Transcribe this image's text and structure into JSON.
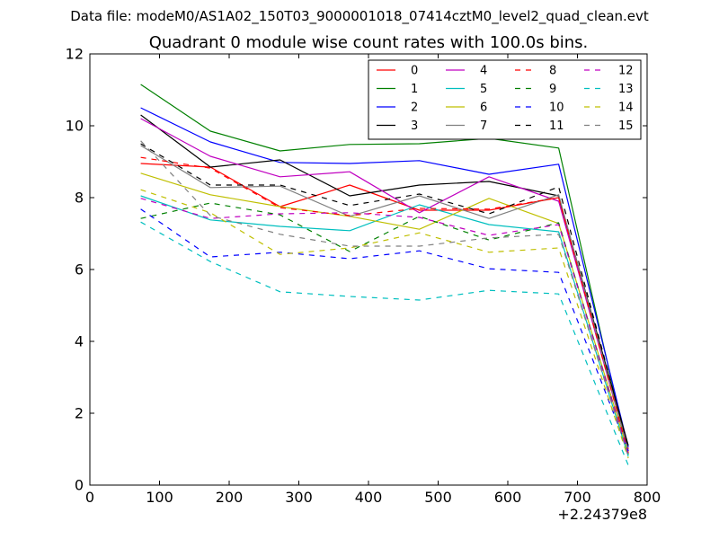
{
  "chart_data": {
    "type": "line",
    "suptitle": "Data file: modeM0/AS1A02_150T03_9000001018_07414cztM0_level2_quad_clean.evt",
    "title": "Quadrant 0 module wise count rates with 100.0s bins.",
    "xlabel": "",
    "ylabel": "",
    "x_offset_label": "+2.24379e8",
    "xlim": [
      0,
      800
    ],
    "ylim": [
      0,
      12
    ],
    "x_ticks": [
      0,
      100,
      200,
      300,
      400,
      500,
      600,
      700,
      800
    ],
    "y_ticks": [
      0,
      2,
      4,
      6,
      8,
      10,
      12
    ],
    "x": [
      73,
      173,
      273,
      373,
      473,
      573,
      673,
      773
    ],
    "legend_position": "upper-right",
    "legend_columns": 4,
    "series": [
      {
        "name": "0",
        "color": "#ff0000",
        "style": "solid",
        "values": [
          8.95,
          8.85,
          7.75,
          8.35,
          7.65,
          7.65,
          8.0,
          1.0
        ]
      },
      {
        "name": "1",
        "color": "#008000",
        "style": "solid",
        "values": [
          11.15,
          9.85,
          9.3,
          9.48,
          9.5,
          9.65,
          9.38,
          0.85
        ]
      },
      {
        "name": "2",
        "color": "#0000ff",
        "style": "solid",
        "values": [
          10.5,
          9.55,
          8.98,
          8.95,
          9.03,
          8.65,
          8.93,
          1.05
        ]
      },
      {
        "name": "3",
        "color": "#000000",
        "style": "solid",
        "values": [
          10.3,
          8.85,
          9.05,
          8.05,
          8.35,
          8.45,
          8.05,
          1.1
        ]
      },
      {
        "name": "4",
        "color": "#c000c0",
        "style": "solid",
        "values": [
          10.2,
          9.15,
          8.58,
          8.72,
          7.58,
          8.58,
          7.9,
          0.95
        ]
      },
      {
        "name": "5",
        "color": "#00bfbf",
        "style": "solid",
        "values": [
          8.05,
          7.38,
          7.2,
          7.08,
          7.8,
          7.25,
          7.05,
          0.8
        ]
      },
      {
        "name": "6",
        "color": "#bfbf00",
        "style": "solid",
        "values": [
          8.68,
          8.08,
          7.75,
          7.48,
          7.12,
          7.98,
          7.28,
          0.9
        ]
      },
      {
        "name": "7",
        "color": "#808080",
        "style": "solid",
        "values": [
          9.45,
          8.28,
          8.32,
          7.48,
          8.05,
          7.42,
          8.08,
          0.95
        ]
      },
      {
        "name": "8",
        "color": "#ff0000",
        "style": "dashed",
        "values": [
          9.12,
          8.82,
          7.72,
          7.5,
          7.7,
          7.68,
          8.0,
          0.9
        ]
      },
      {
        "name": "9",
        "color": "#008000",
        "style": "dashed",
        "values": [
          7.42,
          7.85,
          7.52,
          6.5,
          7.48,
          6.82,
          7.3,
          0.85
        ]
      },
      {
        "name": "10",
        "color": "#0000ff",
        "style": "dashed",
        "values": [
          7.68,
          6.35,
          6.48,
          6.3,
          6.52,
          6.02,
          5.92,
          0.95
        ]
      },
      {
        "name": "11",
        "color": "#000000",
        "style": "dashed",
        "values": [
          9.5,
          8.35,
          8.35,
          7.78,
          8.1,
          7.55,
          8.3,
          1.05
        ]
      },
      {
        "name": "12",
        "color": "#c000c0",
        "style": "dashed",
        "values": [
          7.98,
          7.42,
          7.55,
          7.58,
          7.45,
          6.95,
          7.25,
          0.85
        ]
      },
      {
        "name": "13",
        "color": "#00bfbf",
        "style": "dashed",
        "values": [
          7.32,
          6.22,
          5.38,
          5.25,
          5.15,
          5.42,
          5.32,
          0.55
        ]
      },
      {
        "name": "14",
        "color": "#bfbf00",
        "style": "dashed",
        "values": [
          8.22,
          7.58,
          6.42,
          6.6,
          7.02,
          6.48,
          6.6,
          0.75
        ]
      },
      {
        "name": "15",
        "color": "#808080",
        "style": "dashed",
        "values": [
          9.58,
          7.5,
          6.98,
          6.65,
          6.65,
          6.88,
          6.98,
          0.8
        ]
      }
    ]
  }
}
